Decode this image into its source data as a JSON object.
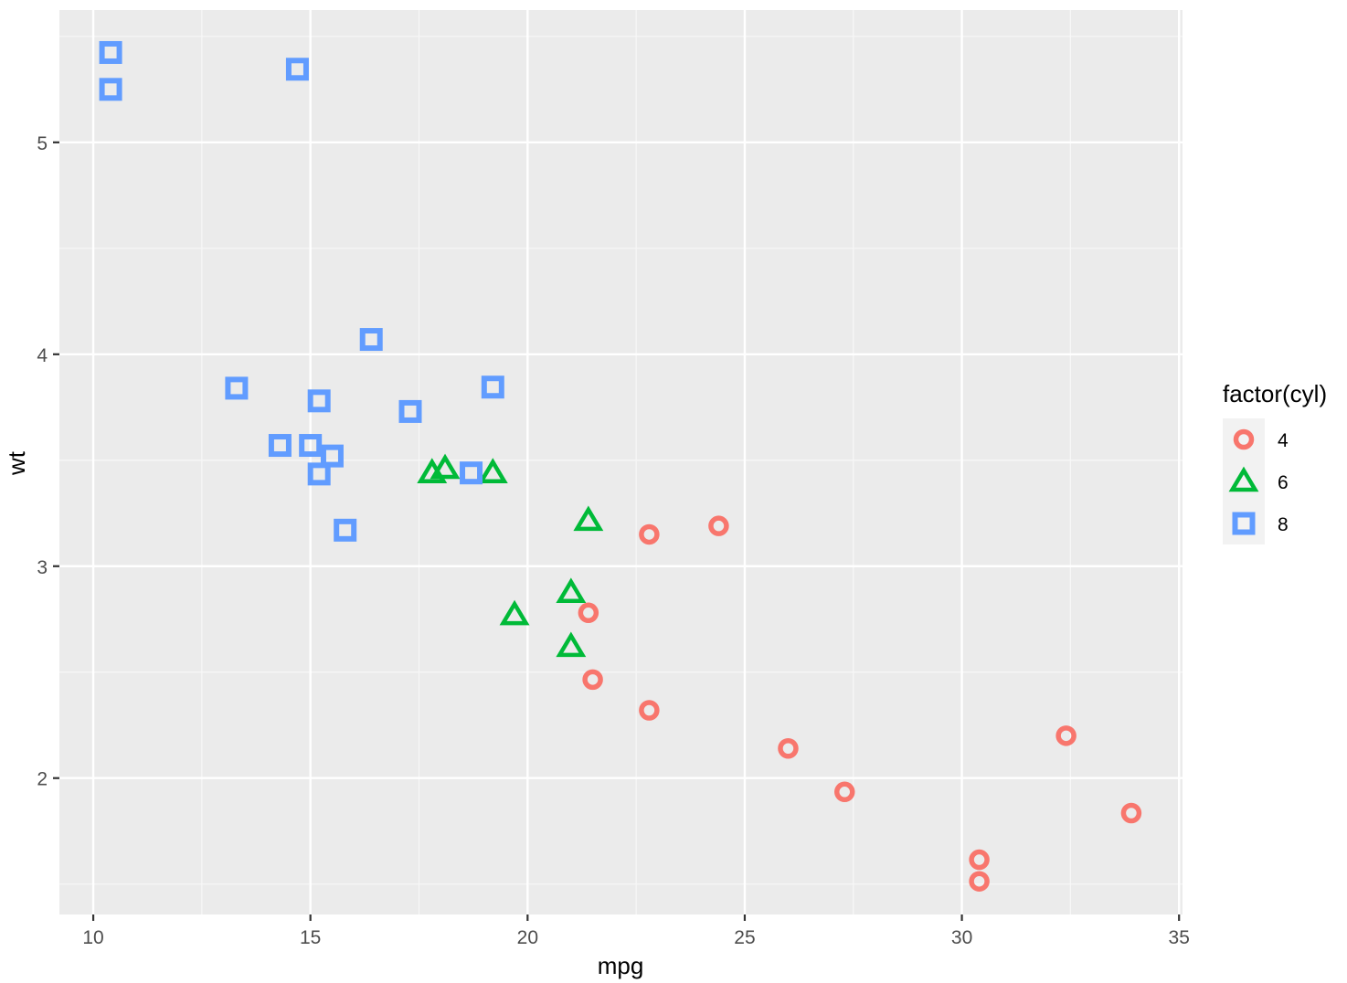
{
  "chart_data": {
    "type": "scatter",
    "title": "",
    "xlabel": "mpg",
    "ylabel": "wt",
    "xlim": [
      9.22,
      35.08
    ],
    "ylim": [
      1.3565,
      5.6243
    ],
    "x_ticks": [
      10,
      15,
      20,
      25,
      30,
      35
    ],
    "x_tick_labels": [
      "10",
      "15",
      "20",
      "25",
      "30",
      "35"
    ],
    "y_ticks": [
      2,
      3,
      4,
      5
    ],
    "y_tick_labels": [
      "2",
      "3",
      "4",
      "5"
    ],
    "grid": true,
    "panel_background": "#EBEBEB",
    "legend": {
      "title": "factor(cyl)",
      "position": "right",
      "entries": [
        {
          "label": "4",
          "shape": "open-circle",
          "color": "#F8766D"
        },
        {
          "label": "6",
          "shape": "open-triangle",
          "color": "#00BA38"
        },
        {
          "label": "8",
          "shape": "open-square",
          "color": "#619CFF"
        }
      ]
    },
    "series": [
      {
        "name": "4",
        "shape": "open-circle",
        "color": "#F8766D",
        "points": [
          {
            "x": 22.8,
            "y": 2.32
          },
          {
            "x": 24.4,
            "y": 3.19
          },
          {
            "x": 22.8,
            "y": 3.15
          },
          {
            "x": 32.4,
            "y": 2.2
          },
          {
            "x": 30.4,
            "y": 1.615
          },
          {
            "x": 33.9,
            "y": 1.835
          },
          {
            "x": 21.5,
            "y": 2.465
          },
          {
            "x": 27.3,
            "y": 1.935
          },
          {
            "x": 26.0,
            "y": 2.14
          },
          {
            "x": 30.4,
            "y": 1.513
          },
          {
            "x": 21.4,
            "y": 2.78
          }
        ]
      },
      {
        "name": "6",
        "shape": "open-triangle",
        "color": "#00BA38",
        "points": [
          {
            "x": 21.0,
            "y": 2.62
          },
          {
            "x": 21.0,
            "y": 2.875
          },
          {
            "x": 21.4,
            "y": 3.215
          },
          {
            "x": 18.1,
            "y": 3.46
          },
          {
            "x": 19.2,
            "y": 3.44
          },
          {
            "x": 17.8,
            "y": 3.44
          },
          {
            "x": 19.7,
            "y": 2.77
          }
        ]
      },
      {
        "name": "8",
        "shape": "open-square",
        "color": "#619CFF",
        "points": [
          {
            "x": 18.7,
            "y": 3.44
          },
          {
            "x": 14.3,
            "y": 3.57
          },
          {
            "x": 16.4,
            "y": 4.07
          },
          {
            "x": 17.3,
            "y": 3.73
          },
          {
            "x": 15.2,
            "y": 3.78
          },
          {
            "x": 10.4,
            "y": 5.25
          },
          {
            "x": 10.4,
            "y": 5.424
          },
          {
            "x": 14.7,
            "y": 5.345
          },
          {
            "x": 15.5,
            "y": 3.52
          },
          {
            "x": 15.2,
            "y": 3.435
          },
          {
            "x": 13.3,
            "y": 3.84
          },
          {
            "x": 19.2,
            "y": 3.845
          },
          {
            "x": 15.8,
            "y": 3.17
          },
          {
            "x": 15.0,
            "y": 3.57
          }
        ]
      }
    ]
  }
}
